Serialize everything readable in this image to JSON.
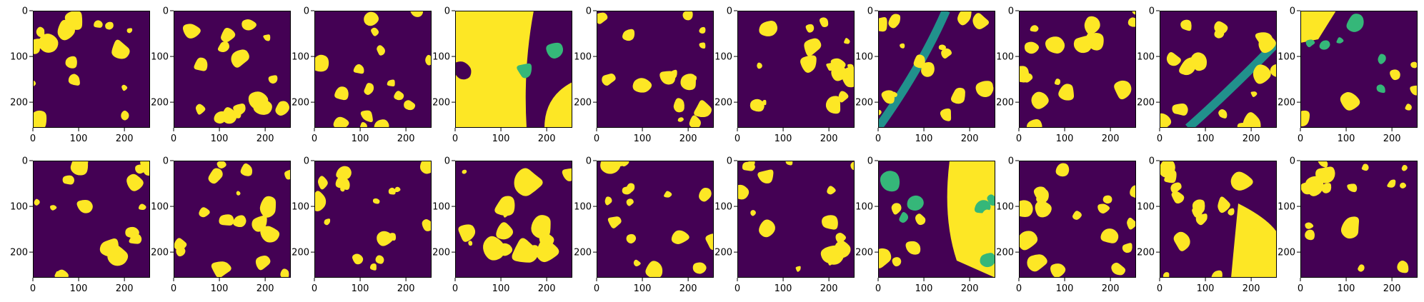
{
  "chart_data": {
    "type": "heatmap",
    "description_layout": "grid",
    "rows": 2,
    "cols": 10,
    "image_size": [
      256,
      256
    ],
    "colormap": "viridis",
    "classes": {
      "0": "#440154",
      "1": "#21918c",
      "2": "#35b779",
      "3": "#fde725"
    },
    "axes": {
      "x_ticks": [
        0,
        100,
        200
      ],
      "y_ticks": [
        0,
        100,
        200
      ],
      "xlim": [
        0,
        256
      ],
      "ylim": [
        256,
        0
      ]
    },
    "panels": [
      {
        "index": 0,
        "classes_present": [
          0,
          3
        ],
        "dominant": 0
      },
      {
        "index": 1,
        "classes_present": [
          0,
          3
        ],
        "dominant": 0
      },
      {
        "index": 2,
        "classes_present": [
          0,
          3
        ],
        "dominant": 0
      },
      {
        "index": 3,
        "classes_present": [
          0,
          2,
          3
        ],
        "dominant": 3
      },
      {
        "index": 4,
        "classes_present": [
          0,
          3
        ],
        "dominant": 0
      },
      {
        "index": 5,
        "classes_present": [
          0,
          3
        ],
        "dominant": 0
      },
      {
        "index": 6,
        "classes_present": [
          0,
          1,
          3
        ],
        "dominant": 0
      },
      {
        "index": 7,
        "classes_present": [
          0,
          3
        ],
        "dominant": 0
      },
      {
        "index": 8,
        "classes_present": [
          0,
          1,
          3
        ],
        "dominant": 0
      },
      {
        "index": 9,
        "classes_present": [
          0,
          2,
          3
        ],
        "dominant": 0
      },
      {
        "index": 10,
        "classes_present": [
          0,
          3
        ],
        "dominant": 0
      },
      {
        "index": 11,
        "classes_present": [
          0,
          3
        ],
        "dominant": 0
      },
      {
        "index": 12,
        "classes_present": [
          0,
          3
        ],
        "dominant": 0
      },
      {
        "index": 13,
        "classes_present": [
          0,
          3
        ],
        "dominant": 0
      },
      {
        "index": 14,
        "classes_present": [
          0,
          3
        ],
        "dominant": 0
      },
      {
        "index": 15,
        "classes_present": [
          0,
          3
        ],
        "dominant": 0
      },
      {
        "index": 16,
        "classes_present": [
          0,
          2,
          3
        ],
        "dominant": 0
      },
      {
        "index": 17,
        "classes_present": [
          0,
          3
        ],
        "dominant": 0
      },
      {
        "index": 18,
        "classes_present": [
          0,
          3
        ],
        "dominant": 0
      },
      {
        "index": 19,
        "classes_present": [
          0,
          3
        ],
        "dominant": 0
      }
    ]
  }
}
